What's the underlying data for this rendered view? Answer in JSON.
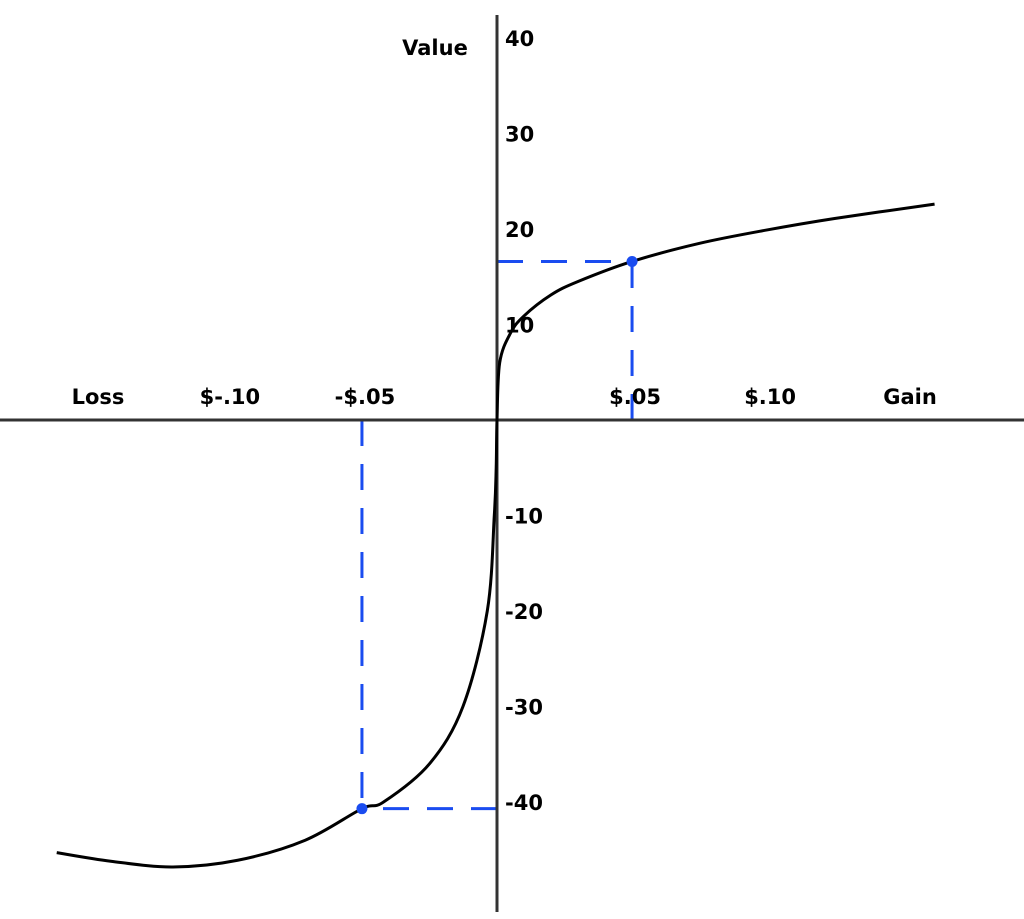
{
  "chart_data": {
    "type": "line",
    "title": "",
    "xlabel_left": "Loss",
    "xlabel_right": "Gain",
    "ylabel": "Value",
    "xlim": [
      -0.184,
      0.195
    ],
    "ylim": [
      -51,
      42
    ],
    "grid": false,
    "x_ticks": [
      {
        "value": -0.1,
        "label": "$-.10"
      },
      {
        "value": -0.05,
        "label": "-$.05"
      },
      {
        "value": 0.05,
        "label": "$.05"
      },
      {
        "value": 0.1,
        "label": "$.10"
      }
    ],
    "y_ticks": [
      {
        "value": 40,
        "label": "40"
      },
      {
        "value": 30,
        "label": "30"
      },
      {
        "value": 20,
        "label": "20"
      },
      {
        "value": 10,
        "label": "10"
      },
      {
        "value": -10,
        "label": "-10"
      },
      {
        "value": -20,
        "label": "-20"
      },
      {
        "value": -30,
        "label": "-30"
      },
      {
        "value": -40,
        "label": "-40"
      }
    ],
    "series": [
      {
        "color": "#000000",
        "points": [
          [
            -0.163,
            -45.3
          ],
          [
            -0.143,
            -46.2
          ],
          [
            -0.12,
            -46.8
          ],
          [
            -0.096,
            -46.1
          ],
          [
            -0.071,
            -44
          ],
          [
            -0.05,
            -40.7
          ],
          [
            -0.042,
            -40
          ],
          [
            -0.025,
            -36
          ],
          [
            -0.0126,
            -30
          ],
          [
            -0.0036,
            -20
          ],
          [
            -0.001,
            -10
          ],
          [
            -0.0003,
            -5
          ],
          [
            0,
            0
          ],
          [
            0.001,
            6
          ],
          [
            0.005,
            9.1
          ],
          [
            0.01,
            10.9
          ],
          [
            0.02,
            13.1
          ],
          [
            0.03,
            14.5
          ],
          [
            0.05,
            16.6
          ],
          [
            0.075,
            18.5
          ],
          [
            0.1,
            19.9
          ],
          [
            0.125,
            21.1
          ],
          [
            0.162,
            22.6
          ]
        ]
      }
    ],
    "highlight_points": [
      {
        "x": 0.05,
        "y": 16.6,
        "color": "#1a4cf0"
      },
      {
        "x": -0.05,
        "y": -40.7,
        "color": "#1a4cf0"
      }
    ],
    "axis_color": "#333333"
  }
}
